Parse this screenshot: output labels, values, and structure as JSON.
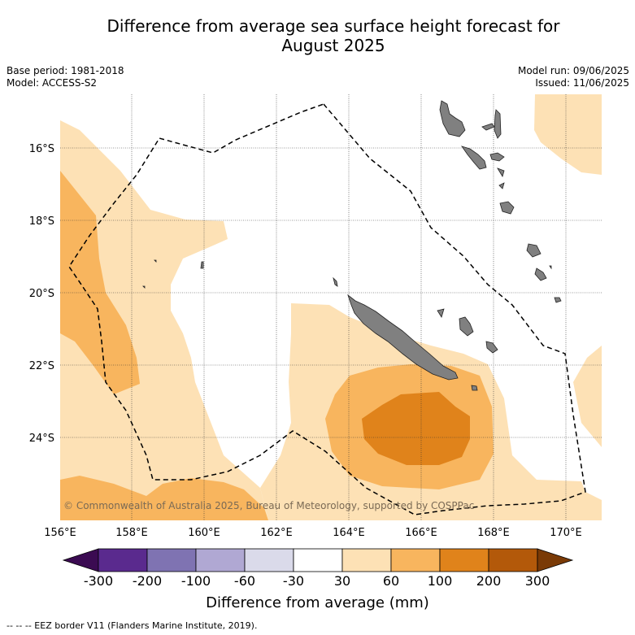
{
  "header": {
    "title_line1": "Difference from average sea surface height forecast for",
    "title_line2": "August 2025",
    "base_period": "Base period: 1981-2018",
    "model": "Model: ACCESS-S2",
    "model_run": "Model run: 09/06/2025",
    "issued": "Issued: 11/06/2025"
  },
  "map": {
    "copyright": "© Commonwealth of Australia 2025, Bureau of Meteorology, supported by COSPPac",
    "lon_ticks": [
      "156°E",
      "158°E",
      "160°E",
      "162°E",
      "164°E",
      "166°E",
      "168°E",
      "170°E"
    ],
    "lat_ticks": [
      "16°S",
      "18°S",
      "20°S",
      "22°S",
      "24°S"
    ],
    "colors": {
      "c30_60": "#fde1b5",
      "c60_100": "#f8b55e",
      "c100_200": "#e0831b",
      "land": "#808080"
    }
  },
  "colorbar": {
    "ticks": [
      "-300",
      "-200",
      "-100",
      "-60",
      "-30",
      "30",
      "60",
      "100",
      "200",
      "300"
    ],
    "colors": [
      "#3b0b52",
      "#5a2a8e",
      "#7f73b2",
      "#b0a8d3",
      "#dadaea",
      "#ffffff",
      "#fde1b5",
      "#f8b55e",
      "#e0831b",
      "#b3590a",
      "#7a3a06"
    ],
    "label": "Difference from average (mm)"
  },
  "footnote": "--  --  -- EEZ border V11 (Flanders Marine Institute, 2019)."
}
